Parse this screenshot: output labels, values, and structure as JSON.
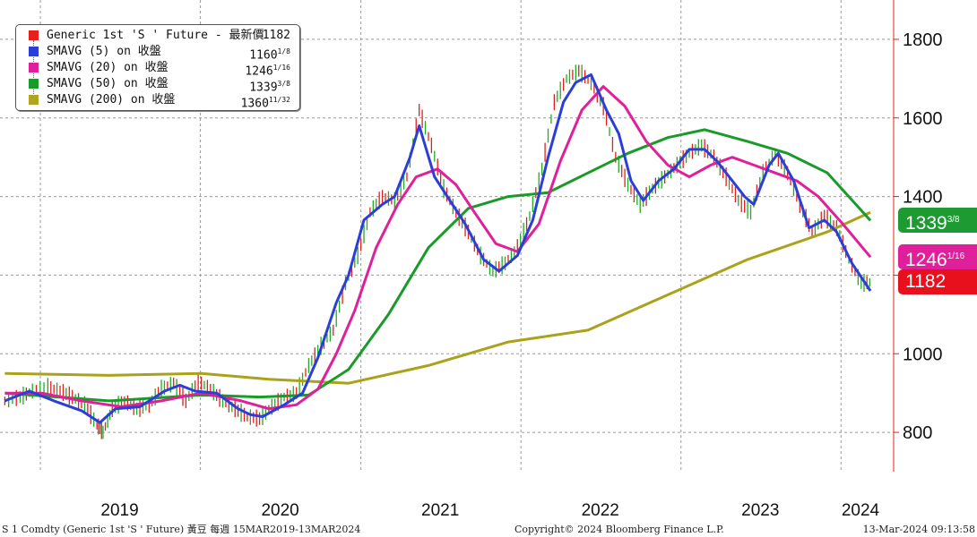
{
  "chart_data": {
    "type": "line",
    "title": "",
    "xlabel": "",
    "ylabel": "",
    "xlim": [
      "2018-10-01",
      "2024-04-30"
    ],
    "ylim": [
      700,
      1900
    ],
    "y_ticks": [
      800,
      1000,
      1200,
      1400,
      1600,
      1800
    ],
    "x_ticks": [
      "2019",
      "2020",
      "2021",
      "2022",
      "2023",
      "2024"
    ],
    "grid": "vertical dashed at year boundaries, horizontal dashed at 200 steps",
    "legend_position": "top-left",
    "price_bars": {
      "name": "Generic 1st 'S ' Future - 最新價",
      "color": "#1a1a1a",
      "up_color": "#22aa22",
      "down_color": "#e0201c",
      "close": [
        [
          "2018-10-12",
          880
        ],
        [
          "2018-11-16",
          890
        ],
        [
          "2018-12-14",
          905
        ],
        [
          "2019-01-18",
          915
        ],
        [
          "2019-02-15",
          905
        ],
        [
          "2019-03-15",
          890
        ],
        [
          "2019-04-12",
          870
        ],
        [
          "2019-05-10",
          820
        ],
        [
          "2019-05-24",
          800
        ],
        [
          "2019-06-14",
          860
        ],
        [
          "2019-07-12",
          880
        ],
        [
          "2019-08-09",
          860
        ],
        [
          "2019-09-06",
          870
        ],
        [
          "2019-10-04",
          910
        ],
        [
          "2019-11-01",
          925
        ],
        [
          "2019-11-29",
          880
        ],
        [
          "2019-12-27",
          930
        ],
        [
          "2020-01-24",
          910
        ],
        [
          "2020-02-21",
          880
        ],
        [
          "2020-03-20",
          860
        ],
        [
          "2020-04-17",
          840
        ],
        [
          "2020-05-15",
          835
        ],
        [
          "2020-06-12",
          865
        ],
        [
          "2020-07-10",
          890
        ],
        [
          "2020-08-07",
          900
        ],
        [
          "2020-09-04",
          970
        ],
        [
          "2020-10-02",
          1020
        ],
        [
          "2020-10-30",
          1060
        ],
        [
          "2020-11-27",
          1180
        ],
        [
          "2020-12-25",
          1250
        ],
        [
          "2021-01-22",
          1360
        ],
        [
          "2021-02-19",
          1400
        ],
        [
          "2021-03-19",
          1390
        ],
        [
          "2021-04-16",
          1450
        ],
        [
          "2021-05-14",
          1620
        ],
        [
          "2021-06-11",
          1530
        ],
        [
          "2021-07-09",
          1420
        ],
        [
          "2021-08-06",
          1360
        ],
        [
          "2021-09-03",
          1310
        ],
        [
          "2021-10-01",
          1250
        ],
        [
          "2021-10-29",
          1210
        ],
        [
          "2021-11-26",
          1230
        ],
        [
          "2021-12-24",
          1270
        ],
        [
          "2022-01-21",
          1350
        ],
        [
          "2022-02-18",
          1470
        ],
        [
          "2022-03-18",
          1640
        ],
        [
          "2022-04-15",
          1700
        ],
        [
          "2022-05-13",
          1720
        ],
        [
          "2022-06-10",
          1690
        ],
        [
          "2022-07-08",
          1630
        ],
        [
          "2022-08-05",
          1500
        ],
        [
          "2022-09-02",
          1430
        ],
        [
          "2022-09-30",
          1380
        ],
        [
          "2022-10-28",
          1420
        ],
        [
          "2022-11-25",
          1450
        ],
        [
          "2022-12-23",
          1480
        ],
        [
          "2023-01-20",
          1510
        ],
        [
          "2023-02-17",
          1530
        ],
        [
          "2023-03-17",
          1500
        ],
        [
          "2023-04-14",
          1450
        ],
        [
          "2023-05-12",
          1390
        ],
        [
          "2023-06-09",
          1360
        ],
        [
          "2023-07-07",
          1460
        ],
        [
          "2023-08-04",
          1510
        ],
        [
          "2023-09-01",
          1460
        ],
        [
          "2023-09-29",
          1380
        ],
        [
          "2023-10-27",
          1310
        ],
        [
          "2023-11-24",
          1350
        ],
        [
          "2023-12-22",
          1320
        ],
        [
          "2024-01-19",
          1240
        ],
        [
          "2024-02-16",
          1180
        ],
        [
          "2024-03-13",
          1182
        ]
      ]
    },
    "series": [
      {
        "name": "SMAVG (5)  on 收盤",
        "color": "#2b3fd8",
        "points": [
          [
            "2018-10-12",
            880
          ],
          [
            "2018-12-07",
            905
          ],
          [
            "2019-02-01",
            880
          ],
          [
            "2019-04-05",
            855
          ],
          [
            "2019-05-17",
            825
          ],
          [
            "2019-06-21",
            860
          ],
          [
            "2019-08-16",
            865
          ],
          [
            "2019-10-11",
            905
          ],
          [
            "2019-11-15",
            920
          ],
          [
            "2019-12-20",
            905
          ],
          [
            "2020-02-07",
            900
          ],
          [
            "2020-03-27",
            860
          ],
          [
            "2020-04-24",
            845
          ],
          [
            "2020-05-22",
            840
          ],
          [
            "2020-07-10",
            870
          ],
          [
            "2020-08-21",
            900
          ],
          [
            "2020-09-25",
            990
          ],
          [
            "2020-11-06",
            1130
          ],
          [
            "2020-12-04",
            1200
          ],
          [
            "2021-01-08",
            1340
          ],
          [
            "2021-02-19",
            1380
          ],
          [
            "2021-03-19",
            1400
          ],
          [
            "2021-04-23",
            1500
          ],
          [
            "2021-05-14",
            1580
          ],
          [
            "2021-06-18",
            1450
          ],
          [
            "2021-07-23",
            1390
          ],
          [
            "2021-08-27",
            1330
          ],
          [
            "2021-10-08",
            1240
          ],
          [
            "2021-11-12",
            1210
          ],
          [
            "2021-12-24",
            1250
          ],
          [
            "2022-01-28",
            1340
          ],
          [
            "2022-03-04",
            1500
          ],
          [
            "2022-04-08",
            1640
          ],
          [
            "2022-05-06",
            1690
          ],
          [
            "2022-06-10",
            1710
          ],
          [
            "2022-07-15",
            1620
          ],
          [
            "2022-08-12",
            1560
          ],
          [
            "2022-09-09",
            1440
          ],
          [
            "2022-10-07",
            1390
          ],
          [
            "2022-11-11",
            1440
          ],
          [
            "2022-12-16",
            1470
          ],
          [
            "2023-01-20",
            1520
          ],
          [
            "2023-02-24",
            1520
          ],
          [
            "2023-03-24",
            1490
          ],
          [
            "2023-04-28",
            1440
          ],
          [
            "2023-05-26",
            1400
          ],
          [
            "2023-06-16",
            1380
          ],
          [
            "2023-07-21",
            1480
          ],
          [
            "2023-08-11",
            1510
          ],
          [
            "2023-09-15",
            1440
          ],
          [
            "2023-10-20",
            1320
          ],
          [
            "2023-11-24",
            1340
          ],
          [
            "2023-12-22",
            1310
          ],
          [
            "2024-01-26",
            1230
          ],
          [
            "2024-03-08",
            1160
          ]
        ]
      },
      {
        "name": "SMAVG (20)  on 收盤",
        "color": "#e0209a",
        "points": [
          [
            "2018-10-12",
            900
          ],
          [
            "2019-01-04",
            900
          ],
          [
            "2019-04-05",
            880
          ],
          [
            "2019-07-05",
            865
          ],
          [
            "2019-10-04",
            880
          ],
          [
            "2020-01-03",
            900
          ],
          [
            "2020-04-03",
            880
          ],
          [
            "2020-06-05",
            860
          ],
          [
            "2020-08-07",
            870
          ],
          [
            "2020-09-25",
            910
          ],
          [
            "2020-11-06",
            1000
          ],
          [
            "2020-12-18",
            1110
          ],
          [
            "2021-02-05",
            1270
          ],
          [
            "2021-03-26",
            1380
          ],
          [
            "2021-05-07",
            1450
          ],
          [
            "2021-06-25",
            1470
          ],
          [
            "2021-08-06",
            1430
          ],
          [
            "2021-09-17",
            1360
          ],
          [
            "2021-11-05",
            1280
          ],
          [
            "2021-12-24",
            1260
          ],
          [
            "2022-02-11",
            1330
          ],
          [
            "2022-04-01",
            1490
          ],
          [
            "2022-05-20",
            1620
          ],
          [
            "2022-07-08",
            1680
          ],
          [
            "2022-08-26",
            1630
          ],
          [
            "2022-10-14",
            1540
          ],
          [
            "2022-12-02",
            1480
          ],
          [
            "2023-01-20",
            1450
          ],
          [
            "2023-03-10",
            1480
          ],
          [
            "2023-04-28",
            1500
          ],
          [
            "2023-06-16",
            1480
          ],
          [
            "2023-08-04",
            1460
          ],
          [
            "2023-09-22",
            1440
          ],
          [
            "2023-11-10",
            1400
          ],
          [
            "2024-01-05",
            1330
          ],
          [
            "2024-03-08",
            1246
          ]
        ]
      },
      {
        "name": "SMAVG (50)  on 收盤",
        "color": "#1a9a2a",
        "points": [
          [
            "2018-10-12",
            900
          ],
          [
            "2019-06-07",
            880
          ],
          [
            "2020-01-03",
            895
          ],
          [
            "2020-05-15",
            890
          ],
          [
            "2020-09-04",
            895
          ],
          [
            "2020-12-04",
            960
          ],
          [
            "2021-03-05",
            1100
          ],
          [
            "2021-06-04",
            1270
          ],
          [
            "2021-09-03",
            1370
          ],
          [
            "2021-12-03",
            1400
          ],
          [
            "2022-03-04",
            1410
          ],
          [
            "2022-06-03",
            1460
          ],
          [
            "2022-09-02",
            1510
          ],
          [
            "2022-12-02",
            1550
          ],
          [
            "2023-02-24",
            1570
          ],
          [
            "2023-06-02",
            1540
          ],
          [
            "2023-09-01",
            1510
          ],
          [
            "2023-12-01",
            1460
          ],
          [
            "2024-03-08",
            1339
          ]
        ]
      },
      {
        "name": "SMAVG (200)  on 收盤",
        "color": "#a9a21a",
        "points": [
          [
            "2018-10-12",
            950
          ],
          [
            "2019-06-07",
            945
          ],
          [
            "2020-01-03",
            950
          ],
          [
            "2020-06-05",
            935
          ],
          [
            "2020-12-04",
            925
          ],
          [
            "2021-06-04",
            970
          ],
          [
            "2021-12-03",
            1030
          ],
          [
            "2022-06-03",
            1060
          ],
          [
            "2022-12-02",
            1150
          ],
          [
            "2023-06-02",
            1240
          ],
          [
            "2023-12-01",
            1310
          ],
          [
            "2024-03-08",
            1360
          ]
        ]
      }
    ],
    "legend": [
      {
        "label": "Generic 1st 'S ' Future - 最新價",
        "value": "1182",
        "color": "#e8201c"
      },
      {
        "label": "SMAVG (5)  on 收盤",
        "value": "1160",
        "frac": "1/8",
        "color": "#2b3fd8"
      },
      {
        "label": "SMAVG (20)  on 收盤",
        "value": "1246",
        "frac": "1/16",
        "color": "#e0209a"
      },
      {
        "label": "SMAVG (50)  on 收盤",
        "value": "1339",
        "frac": "3/8",
        "color": "#1a9a2a"
      },
      {
        "label": "SMAVG (200)  on 收盤",
        "value": "1360",
        "frac": "11/32",
        "color": "#b0a520"
      }
    ],
    "right_tags": [
      {
        "text": "1339",
        "frac": "3/8",
        "color": "#1e9a32",
        "level": 1339
      },
      {
        "text": "1246",
        "frac": "1/16",
        "color": "#e0209a",
        "level": 1246
      },
      {
        "text": "1182",
        "frac": "",
        "color": "#e8101c",
        "level": 1182
      }
    ]
  },
  "footer": {
    "left": "S 1 Comdty (Generic 1st 'S ' Future) 黃豆  每週 15MAR2019-13MAR2024",
    "center": "Copyright© 2024 Bloomberg Finance L.P.",
    "right": "13-Mar-2024 09:13:58"
  }
}
